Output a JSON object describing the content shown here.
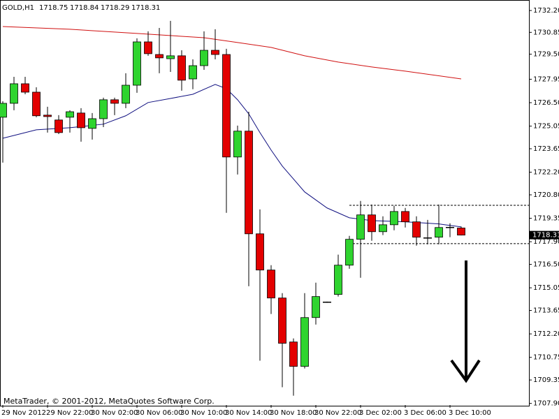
{
  "chart_data": {
    "type": "candlestick",
    "title": "GOLD,H1",
    "footer": "MetaTrader, © 2001-2012, MetaQuotes Software Corp.",
    "categories": [
      "29 Nov 2012",
      null,
      null,
      null,
      "29 Nov 22:00",
      null,
      null,
      null,
      "30 Nov 02:00",
      null,
      null,
      null,
      "30 Nov 06:00",
      null,
      null,
      null,
      "30 Nov 10:00",
      null,
      null,
      null,
      "30 Nov 14:00",
      null,
      null,
      null,
      "30 Nov 18:00",
      null,
      null,
      null,
      "30 Nov 22:00",
      null,
      null,
      null,
      "3 Dec 02:00",
      null,
      null,
      null,
      "3 Dec 06:00",
      null,
      null,
      null,
      "3 Dec 10:00",
      null
    ],
    "open": [
      1725.6,
      1726.46,
      1727.67,
      1727.15,
      1725.73,
      1725.43,
      1725.6,
      1725.86,
      1724.91,
      1725.51,
      1726.68,
      1726.46,
      1727.58,
      1730.26,
      1729.48,
      1729.22,
      1729.4,
      1727.97,
      1728.79,
      1729.74,
      1729.48,
      1723.14,
      1724.74,
      1718.39,
      1716.15,
      1714.42,
      1711.7,
      1710.19,
      1713.21,
      1714.16,
      1714.64,
      1716.45,
      1718.05,
      1719.56,
      1718.52,
      1718.95,
      1719.77,
      1719.13,
      1718.13,
      1718.18,
      1718.78,
      1718.75
    ],
    "high": [
      1726.59,
      1728.1,
      1728.1,
      1727.45,
      1726.25,
      1725.73,
      1726.03,
      1726.16,
      1725.86,
      1726.81,
      1726.81,
      1728.32,
      1730.48,
      1730.91,
      1731.12,
      1731.56,
      1729.74,
      1729.18,
      1730.91,
      1731.04,
      1729.83,
      1725.08,
      1725.94,
      1719.9,
      1716.45,
      1714.72,
      1711.92,
      1714.72,
      1715.37,
      1714.2,
      1717.1,
      1718.26,
      1720.42,
      1720.2,
      1719.47,
      1720.12,
      1719.99,
      1719.47,
      1719.25,
      1720.2,
      1719.04,
      1718.84
    ],
    "low": [
      1722.79,
      1726.03,
      1727.02,
      1725.6,
      1724.65,
      1724.56,
      1724.65,
      1724.09,
      1724.22,
      1724.99,
      1725.73,
      1726.16,
      1727.11,
      1729.4,
      1728.32,
      1728.4,
      1727.24,
      1727.33,
      1728.53,
      1729.18,
      1719.69,
      1722.06,
      1715.15,
      1710.54,
      1713.43,
      1708.9,
      1708.38,
      1710.06,
      1712.78,
      1714.12,
      1714.51,
      1716.23,
      1715.67,
      1717.96,
      1718.31,
      1718.61,
      1718.78,
      1717.66,
      1717.74,
      1717.74,
      1718.18,
      1718.29
    ],
    "close": [
      1726.46,
      1727.67,
      1727.15,
      1725.69,
      1725.64,
      1724.65,
      1725.94,
      1724.95,
      1725.51,
      1726.68,
      1726.46,
      1727.58,
      1730.26,
      1729.53,
      1729.27,
      1729.4,
      1727.89,
      1728.79,
      1729.74,
      1729.48,
      1723.14,
      1724.74,
      1718.39,
      1716.15,
      1714.42,
      1711.62,
      1710.19,
      1713.21,
      1714.51,
      1714.16,
      1716.45,
      1718.05,
      1719.56,
      1718.52,
      1718.95,
      1719.77,
      1719.13,
      1718.18,
      1718.13,
      1718.78,
      1718.78,
      1718.31
    ],
    "up_color": "#2fd42f",
    "down_color": "#e30000",
    "lines": [
      {
        "color": "#d01010",
        "x": [
          0,
          6,
          12,
          18,
          21,
          24,
          27,
          30,
          33,
          36,
          41
        ],
        "values": [
          1731.21,
          1731.04,
          1730.78,
          1730.52,
          1730.22,
          1729.92,
          1729.4,
          1729.01,
          1728.71,
          1728.45,
          1727.97
        ]
      },
      {
        "color": "#101080",
        "x": [
          0,
          3,
          6,
          9,
          11,
          13,
          15,
          17,
          19,
          20,
          21,
          22,
          23,
          24,
          25,
          27,
          29,
          31,
          33,
          36,
          39,
          41
        ],
        "values": [
          1724.3,
          1724.82,
          1724.95,
          1725.17,
          1725.69,
          1726.51,
          1726.76,
          1727.02,
          1727.63,
          1727.37,
          1726.68,
          1725.81,
          1724.65,
          1723.57,
          1722.58,
          1720.98,
          1719.99,
          1719.38,
          1719.21,
          1719.13,
          1719.0,
          1718.82
        ]
      }
    ],
    "levels": [
      1720.15,
      1717.78
    ],
    "levels_from": 31,
    "ylim": [
      1707.8,
      1732.85
    ],
    "yticks": [
      {
        "value": 1732.2,
        "label": "1732.20"
      },
      1730.85,
      {
        "value": 1729.5,
        "label": "1729.50"
      },
      1727.95,
      {
        "value": 1726.5,
        "label": "1726.50"
      },
      1725.05,
      1723.65,
      {
        "value": 1722.2,
        "label": "1722.20"
      },
      {
        "value": 1720.8,
        "label": "1720.80"
      },
      1719.35,
      {
        "value": 1717.9,
        "label": "1717.90"
      },
      {
        "value": 1716.5,
        "label": "1716.50"
      },
      1715.05,
      1713.65,
      {
        "value": 1712.2,
        "label": "1712.20"
      },
      1710.75,
      1709.35,
      {
        "value": 1707.9,
        "label": "1707.90"
      }
    ]
  }
}
